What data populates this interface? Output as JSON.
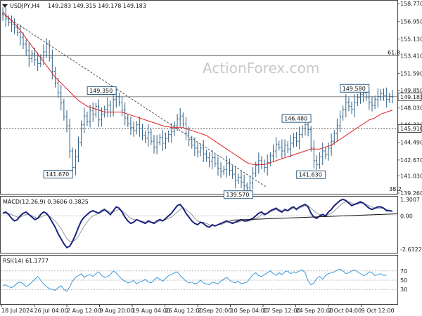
{
  "watermark": "ActionForex.com",
  "chart_data": {
    "type": "candlestick",
    "symbol": "USDJPY,H4",
    "ohlc_header": "149.283 149.315 149.178 149.183",
    "price_panel": {
      "ylim": [
        139.26,
        159.0
      ],
      "y_ticks": [
        "158.770",
        "156.950",
        "155.130",
        "153.410",
        "151.590",
        "149.850",
        "148.030",
        "146.310",
        "144.490",
        "142.670",
        "141.030",
        "139.260"
      ],
      "hlines": [
        {
          "value": 153.41,
          "label": "61.8",
          "color": "#555555"
        },
        {
          "value": 149.183,
          "label": "",
          "color": "#888888"
        },
        {
          "value": 145.91,
          "label": "",
          "color": "#555555",
          "dashed": true
        }
      ],
      "price_tags": [
        {
          "value": "149.183",
          "y": 149.183
        },
        {
          "value": "145.910",
          "y": 145.91
        }
      ],
      "bottom_label": "38.2",
      "annotations": [
        {
          "text": "149.350",
          "x": 38,
          "y": 149.35
        },
        {
          "text": "141.670",
          "x": 23,
          "y": 141.67
        },
        {
          "text": "139.570",
          "x": 85,
          "y": 139.57
        },
        {
          "text": "146.480",
          "x": 105,
          "y": 146.48
        },
        {
          "text": "141.630",
          "x": 110,
          "y": 141.63
        },
        {
          "text": "149.580",
          "x": 125,
          "y": 149.58
        }
      ],
      "close": [
        157.6,
        157.2,
        156.8,
        156.6,
        156.3,
        155.8,
        155.3,
        154.6,
        153.9,
        153.1,
        153.6,
        153.0,
        152.6,
        153.2,
        153.8,
        154.6,
        153.2,
        151.8,
        150.6,
        149.6,
        148.6,
        147.1,
        146.2,
        143.6,
        141.9,
        143.0,
        144.5,
        146.3,
        147.2,
        146.6,
        147.8,
        147.4,
        148.2,
        146.8,
        147.4,
        147.9,
        148.3,
        147.6,
        148.9,
        149.2,
        148.6,
        147.8,
        147.0,
        146.4,
        146.0,
        145.7,
        146.3,
        145.9,
        145.2,
        144.9,
        145.5,
        144.6,
        144.0,
        144.5,
        145.0,
        144.4,
        144.9,
        145.3,
        145.6,
        146.2,
        146.9,
        147.2,
        146.4,
        145.4,
        144.8,
        144.2,
        143.9,
        143.5,
        143.9,
        143.3,
        142.9,
        142.5,
        142.9,
        142.3,
        141.8,
        141.5,
        141.7,
        142.3,
        141.6,
        141.2,
        140.6,
        140.9,
        140.4,
        140.0,
        139.8,
        140.3,
        141.3,
        142.1,
        142.6,
        142.2,
        141.9,
        142.4,
        143.1,
        143.6,
        144.3,
        144.0,
        143.6,
        144.2,
        143.8,
        144.4,
        145.0,
        144.6,
        145.3,
        145.9,
        146.3,
        145.8,
        143.9,
        142.6,
        142.2,
        143.0,
        143.6,
        143.2,
        143.9,
        144.6,
        145.4,
        146.2,
        147.1,
        147.9,
        148.6,
        148.2,
        147.9,
        148.6,
        149.1,
        149.4,
        149.6,
        149.1,
        148.6,
        148.3,
        148.9,
        149.2,
        149.5,
        149.3,
        148.9,
        149.2,
        149.183
      ],
      "ma": [
        157.9,
        157.6,
        157.3,
        157.0,
        156.7,
        156.4,
        156.0,
        155.6,
        155.2,
        154.8,
        154.4,
        154.0,
        153.6,
        153.2,
        152.8,
        152.4,
        152.0,
        151.6,
        151.2,
        150.9,
        150.6,
        150.3,
        150.0,
        149.7,
        149.4,
        149.1,
        148.8,
        148.6,
        148.4,
        148.2,
        148.1,
        148.0,
        147.9,
        147.8,
        147.7,
        147.6,
        147.6,
        147.6,
        147.6,
        147.6,
        147.6,
        147.6,
        147.5,
        147.4,
        147.3,
        147.2,
        147.1,
        147.0,
        146.9,
        146.8,
        146.7,
        146.6,
        146.5,
        146.4,
        146.3,
        146.2,
        146.1,
        146.1,
        146.0,
        146.0,
        146.0,
        146.0,
        146.0,
        145.9,
        145.8,
        145.7,
        145.6,
        145.5,
        145.4,
        145.3,
        145.2,
        145.0,
        144.8,
        144.6,
        144.4,
        144.2,
        144.0,
        143.8,
        143.6,
        143.4,
        143.2,
        143.0,
        142.8,
        142.6,
        142.4,
        142.3,
        142.2,
        142.2,
        142.2,
        142.2,
        142.2,
        142.3,
        142.4,
        142.5,
        142.6,
        142.7,
        142.8,
        142.9,
        143.0,
        143.1,
        143.2,
        143.3,
        143.4,
        143.5,
        143.6,
        143.7,
        143.8,
        143.8,
        143.8,
        143.8,
        143.9,
        144.0,
        144.1,
        144.2,
        144.4,
        144.6,
        144.8,
        145.0,
        145.2,
        145.4,
        145.6,
        145.8,
        146.0,
        146.2,
        146.4,
        146.6,
        146.8,
        146.9,
        147.0,
        147.2,
        147.4,
        147.5,
        147.6,
        147.7,
        147.8
      ]
    },
    "macd_panel": {
      "title": "MACD(12,26,9) 0.3606 0.3825",
      "ylim": [
        -2.8,
        1.4
      ],
      "y_ticks": [
        "1.3007",
        "0.00",
        "-2.6322"
      ],
      "macd": [
        0.2,
        0.3,
        0.1,
        -0.2,
        -0.4,
        -0.3,
        0.0,
        0.2,
        0.3,
        0.1,
        -0.1,
        -0.3,
        -0.2,
        0.1,
        0.3,
        0.2,
        -0.1,
        -0.5,
        -0.9,
        -1.4,
        -1.8,
        -2.2,
        -2.5,
        -2.4,
        -2.0,
        -1.5,
        -0.9,
        -0.4,
        -0.1,
        0.1,
        0.3,
        0.4,
        0.3,
        0.2,
        0.4,
        0.5,
        0.3,
        0.1,
        0.4,
        0.7,
        0.6,
        0.3,
        -0.1,
        -0.4,
        -0.6,
        -0.5,
        -0.3,
        -0.4,
        -0.5,
        -0.6,
        -0.4,
        -0.5,
        -0.6,
        -0.4,
        -0.3,
        -0.4,
        -0.2,
        0.0,
        0.2,
        0.5,
        0.8,
        0.9,
        0.6,
        0.2,
        -0.1,
        -0.4,
        -0.6,
        -0.7,
        -0.5,
        -0.6,
        -0.8,
        -0.9,
        -0.7,
        -0.8,
        -0.7,
        -0.6,
        -0.5,
        -0.4,
        -0.5,
        -0.6,
        -0.5,
        -0.4,
        -0.3,
        -0.4,
        -0.4,
        -0.3,
        -0.2,
        0.0,
        0.2,
        0.3,
        0.1,
        0.2,
        0.4,
        0.5,
        0.6,
        0.4,
        0.3,
        0.5,
        0.4,
        0.6,
        0.7,
        0.5,
        0.7,
        0.8,
        0.9,
        0.7,
        0.2,
        -0.1,
        -0.2,
        0.0,
        0.1,
        0.0,
        0.3,
        0.5,
        0.8,
        1.0,
        1.2,
        1.3,
        1.2,
        1.0,
        0.8,
        0.9,
        1.0,
        1.1,
        1.0,
        0.8,
        0.6,
        0.5,
        0.6,
        0.7,
        0.7,
        0.6,
        0.4,
        0.4,
        0.36
      ],
      "signal": [
        0.2,
        0.2,
        0.2,
        0.1,
        0.0,
        -0.1,
        -0.1,
        0.0,
        0.1,
        0.1,
        0.0,
        -0.1,
        -0.2,
        -0.1,
        0.0,
        0.1,
        0.0,
        -0.2,
        -0.4,
        -0.7,
        -1.0,
        -1.4,
        -1.8,
        -2.0,
        -2.0,
        -1.9,
        -1.6,
        -1.2,
        -0.8,
        -0.5,
        -0.2,
        0.0,
        0.1,
        0.2,
        0.3,
        0.4,
        0.4,
        0.3,
        0.3,
        0.4,
        0.5,
        0.4,
        0.2,
        0.0,
        -0.2,
        -0.3,
        -0.3,
        -0.4,
        -0.4,
        -0.5,
        -0.5,
        -0.5,
        -0.5,
        -0.5,
        -0.4,
        -0.4,
        -0.3,
        -0.2,
        -0.1,
        0.1,
        0.3,
        0.5,
        0.6,
        0.5,
        0.3,
        0.1,
        -0.2,
        -0.4,
        -0.5,
        -0.5,
        -0.6,
        -0.7,
        -0.8,
        -0.8,
        -0.7,
        -0.7,
        -0.6,
        -0.5,
        -0.5,
        -0.5,
        -0.5,
        -0.5,
        -0.4,
        -0.4,
        -0.4,
        -0.4,
        -0.3,
        -0.2,
        -0.1,
        0.1,
        0.2,
        0.2,
        0.3,
        0.4,
        0.5,
        0.5,
        0.4,
        0.4,
        0.4,
        0.5,
        0.6,
        0.6,
        0.6,
        0.7,
        0.8,
        0.8,
        0.6,
        0.4,
        0.2,
        0.1,
        0.1,
        0.0,
        0.1,
        0.2,
        0.4,
        0.6,
        0.8,
        1.0,
        1.1,
        1.1,
        1.0,
        0.9,
        0.9,
        1.0,
        1.0,
        0.9,
        0.8,
        0.7,
        0.6,
        0.6,
        0.6,
        0.6,
        0.5,
        0.45,
        0.38
      ],
      "trendline": [
        [
          78,
          -0.35
        ],
        [
          135,
          0.1
        ]
      ]
    },
    "rsi_panel": {
      "title": "RSI(14) 61.1777",
      "ylim": [
        0,
        100
      ],
      "y_ticks": [
        "70",
        "50",
        "30"
      ],
      "levels": [
        70,
        50,
        30
      ],
      "values": [
        38,
        40,
        36,
        34,
        38,
        44,
        46,
        42,
        36,
        40,
        46,
        52,
        58,
        50,
        42,
        36,
        32,
        30,
        28,
        34,
        38,
        30,
        26,
        36,
        48,
        56,
        60,
        64,
        56,
        60,
        62,
        58,
        64,
        68,
        60,
        56,
        58,
        62,
        70,
        66,
        58,
        52,
        48,
        44,
        46,
        50,
        42,
        46,
        48,
        52,
        46,
        44,
        50,
        56,
        52,
        48,
        54,
        60,
        62,
        66,
        68,
        60,
        54,
        48,
        44,
        46,
        42,
        44,
        50,
        44,
        42,
        40,
        46,
        44,
        42,
        48,
        52,
        56,
        50,
        46,
        44,
        48,
        42,
        44,
        46,
        54,
        62,
        66,
        60,
        58,
        62,
        66,
        70,
        64,
        60,
        66,
        62,
        68,
        70,
        64,
        68,
        66,
        70,
        72,
        66,
        48,
        40,
        44,
        54,
        58,
        52,
        60,
        64,
        66,
        68,
        72,
        74,
        70,
        64,
        66,
        70,
        72,
        68,
        64,
        60,
        62,
        68,
        66,
        60,
        62,
        64,
        60,
        61.2
      ],
      "date_labels": [
        "18 Jul 2024",
        "26 Jul 04:00",
        "2 Aug 12:00",
        "9 Aug 20:00",
        "19 Aug 04:00",
        "26 Aug 12:00",
        "2 Sep 20:00",
        "10 Sep 04:00",
        "17 Sep 12:00",
        "24 Sep 20:00",
        "2 Oct 04:00",
        "9 Oct 12:00"
      ]
    }
  }
}
